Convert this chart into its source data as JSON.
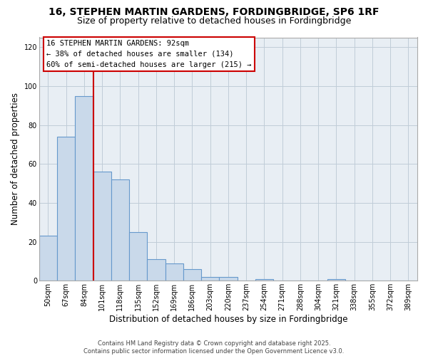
{
  "title_line1": "16, STEPHEN MARTIN GARDENS, FORDINGBRIDGE, SP6 1RF",
  "title_line2": "Size of property relative to detached houses in Fordingbridge",
  "xlabel": "Distribution of detached houses by size in Fordingbridge",
  "ylabel": "Number of detached properties",
  "bar_labels": [
    "50sqm",
    "67sqm",
    "84sqm",
    "101sqm",
    "118sqm",
    "135sqm",
    "152sqm",
    "169sqm",
    "186sqm",
    "203sqm",
    "220sqm",
    "237sqm",
    "254sqm",
    "271sqm",
    "288sqm",
    "304sqm",
    "321sqm",
    "338sqm",
    "355sqm",
    "372sqm",
    "389sqm"
  ],
  "bar_values": [
    23,
    74,
    95,
    56,
    52,
    25,
    11,
    9,
    6,
    2,
    2,
    0,
    1,
    0,
    0,
    0,
    1,
    0,
    0,
    0,
    0
  ],
  "bar_color": "#c9d9ea",
  "bar_edge_color": "#6699cc",
  "vline_color": "#cc0000",
  "annotation_line1": "16 STEPHEN MARTIN GARDENS: 92sqm",
  "annotation_line2": "← 38% of detached houses are smaller (134)",
  "annotation_line3": "60% of semi-detached houses are larger (215) →",
  "ylim": [
    0,
    125
  ],
  "yticks": [
    0,
    20,
    40,
    60,
    80,
    100,
    120
  ],
  "footer_text": "Contains HM Land Registry data © Crown copyright and database right 2025.\nContains public sector information licensed under the Open Government Licence v3.0.",
  "title_fontsize": 10,
  "subtitle_fontsize": 9,
  "axis_label_fontsize": 8.5,
  "tick_fontsize": 7,
  "annotation_fontsize": 7.5,
  "footer_fontsize": 6,
  "bg_color": "#e8eef4",
  "grid_color": "#c0ccd8"
}
